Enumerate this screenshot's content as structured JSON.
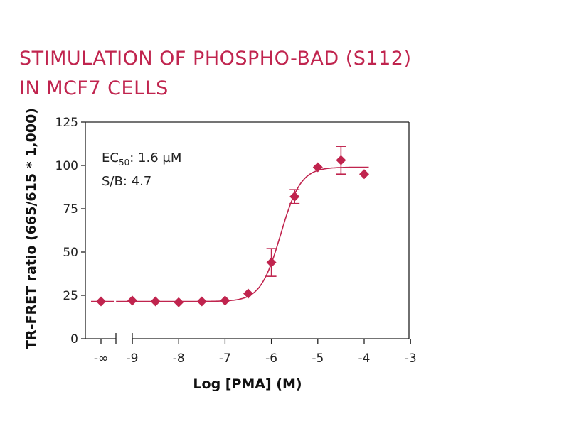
{
  "title_line1": "STIMULATION OF PHOSPHO-BAD (S112)",
  "title_line2": "IN MCF7 CELLS",
  "colors": {
    "accent": "#c0244e",
    "axis": "#222222"
  },
  "chart_data": {
    "type": "scatter",
    "title": "STIMULATION OF PHOSPHO-BAD (S112) IN MCF7 CELLS",
    "xlabel": "Log [PMA] (M)",
    "ylabel": "TR-FRET ratio (665/615 * 1,000)",
    "xlim": [
      -9.7,
      -3
    ],
    "ylim": [
      0,
      125
    ],
    "x_ticks": [
      -9,
      -8,
      -7,
      -6,
      -5,
      -4,
      -3
    ],
    "x_tick_labels": [
      "-9",
      "-8",
      "-7",
      "-6",
      "-5",
      "-4",
      "-3"
    ],
    "x_break_label": "-∞",
    "y_ticks": [
      0,
      25,
      50,
      75,
      100,
      125
    ],
    "annotations": {
      "ec50_prefix": "EC",
      "ec50_sub": "50",
      "ec50_value": ": 1.6 µM",
      "sb": "S/B: 4.7"
    },
    "baseline_point": {
      "x": "-∞",
      "y": 21.5
    },
    "points": [
      {
        "x": -9.0,
        "y": 22.0,
        "err": 0
      },
      {
        "x": -8.5,
        "y": 21.5,
        "err": 0
      },
      {
        "x": -8.0,
        "y": 21.0,
        "err": 0
      },
      {
        "x": -7.5,
        "y": 21.5,
        "err": 0
      },
      {
        "x": -7.0,
        "y": 22.0,
        "err": 0
      },
      {
        "x": -6.5,
        "y": 26.0,
        "err": 0
      },
      {
        "x": -6.0,
        "y": 44.0,
        "err": 8
      },
      {
        "x": -5.5,
        "y": 82.0,
        "err": 4
      },
      {
        "x": -5.0,
        "y": 99.0,
        "err": 0
      },
      {
        "x": -4.5,
        "y": 103.0,
        "err": 8
      },
      {
        "x": -4.0,
        "y": 95.0,
        "err": 0
      }
    ],
    "fit": {
      "bottom": 21.5,
      "top": 99.0,
      "log_ec50": -5.8,
      "hill": 2.0
    }
  }
}
